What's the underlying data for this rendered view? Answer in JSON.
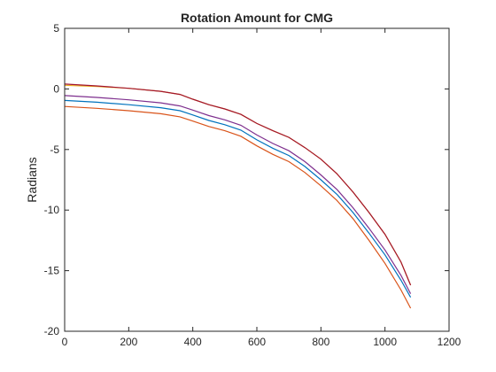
{
  "chart_data": {
    "type": "line",
    "title": "Rotation Amount for CMG",
    "xlabel": "",
    "ylabel": "Radians",
    "xlim": [
      0,
      1200
    ],
    "ylim": [
      -20,
      5
    ],
    "xticks": [
      0,
      200,
      400,
      600,
      800,
      1000,
      1200
    ],
    "yticks": [
      -20,
      -15,
      -10,
      -5,
      0,
      5
    ],
    "grid": false,
    "legend": "none",
    "series": [
      {
        "color": "#0072BD",
        "x": [
          0,
          100,
          200,
          300,
          360,
          400,
          450,
          500,
          550,
          600,
          650,
          700,
          750,
          800,
          850,
          900,
          950,
          1000,
          1050,
          1080
        ],
        "y": [
          -0.95,
          -1.1,
          -1.3,
          -1.55,
          -1.8,
          -2.15,
          -2.6,
          -2.95,
          -3.4,
          -4.2,
          -4.9,
          -5.5,
          -6.4,
          -7.5,
          -8.7,
          -10.2,
          -11.9,
          -13.7,
          -15.8,
          -17.2
        ]
      },
      {
        "color": "#D95319",
        "x": [
          0,
          100,
          200,
          300,
          360,
          400,
          450,
          500,
          550,
          600,
          650,
          700,
          750,
          800,
          850,
          900,
          950,
          1000,
          1050,
          1080
        ],
        "y": [
          -1.45,
          -1.6,
          -1.8,
          -2.05,
          -2.3,
          -2.65,
          -3.1,
          -3.45,
          -3.9,
          -4.7,
          -5.4,
          -6.0,
          -6.9,
          -8.0,
          -9.2,
          -10.7,
          -12.5,
          -14.4,
          -16.6,
          -18.1
        ]
      },
      {
        "color": "#EDB120",
        "x": [
          0,
          100,
          200,
          300,
          360,
          400,
          450,
          500,
          550,
          600,
          650,
          700,
          750,
          800,
          850,
          900,
          950,
          1000,
          1050,
          1080
        ],
        "y": [
          0.3,
          0.2,
          0.05,
          -0.2,
          -0.45,
          -0.85,
          -1.3,
          -1.65,
          -2.1,
          -2.85,
          -3.45,
          -4.0,
          -4.85,
          -5.8,
          -7.0,
          -8.5,
          -10.2,
          -12.0,
          -14.3,
          -16.2
        ]
      },
      {
        "color": "#7E2F8E",
        "x": [
          0,
          100,
          200,
          300,
          360,
          400,
          450,
          500,
          550,
          600,
          650,
          700,
          750,
          800,
          850,
          900,
          950,
          1000,
          1050,
          1080
        ],
        "y": [
          -0.55,
          -0.7,
          -0.9,
          -1.15,
          -1.4,
          -1.75,
          -2.2,
          -2.55,
          -3.0,
          -3.8,
          -4.5,
          -5.1,
          -6.0,
          -7.1,
          -8.3,
          -9.8,
          -11.5,
          -13.3,
          -15.4,
          -16.9
        ]
      },
      {
        "color": "#A2142F",
        "x": [
          0,
          100,
          200,
          300,
          360,
          400,
          450,
          500,
          550,
          600,
          650,
          700,
          750,
          800,
          850,
          900,
          950,
          1000,
          1050,
          1080
        ],
        "y": [
          0.4,
          0.25,
          0.05,
          -0.2,
          -0.45,
          -0.85,
          -1.3,
          -1.65,
          -2.1,
          -2.85,
          -3.45,
          -4.0,
          -4.85,
          -5.8,
          -7.0,
          -8.5,
          -10.2,
          -12.0,
          -14.3,
          -16.2
        ]
      }
    ]
  }
}
